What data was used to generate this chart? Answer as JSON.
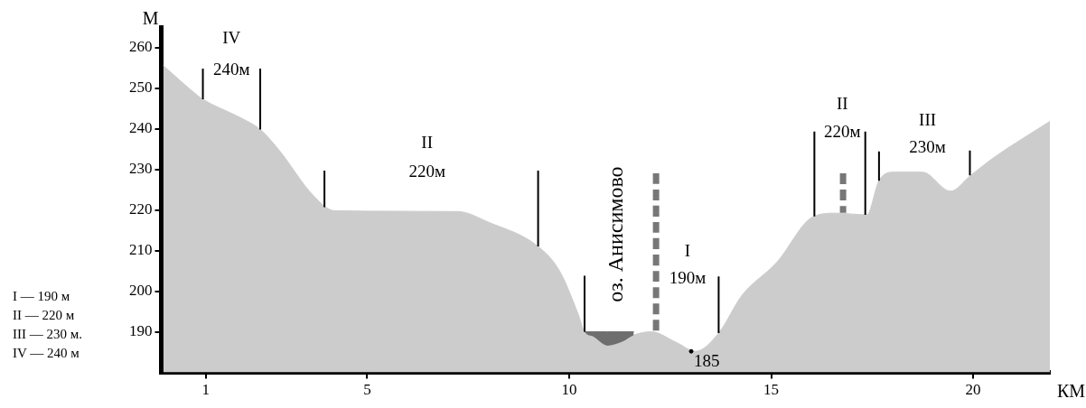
{
  "chart_data": {
    "type": "area",
    "xlabel": "КМ",
    "ylabel": "М",
    "xlim": [
      -0.1,
      21.9
    ],
    "xticks": [
      1,
      5,
      10,
      15,
      20
    ],
    "ylim": [
      180,
      265
    ],
    "yticks": [
      190,
      200,
      210,
      220,
      230,
      240,
      250,
      260
    ],
    "grid": false,
    "legend": false,
    "series": [
      {
        "color": "#cccccc",
        "x": [
          -0.05,
          0.82,
          0.93,
          1.9,
          2.35,
          2.81,
          3.66,
          4.19,
          7.24,
          8.02,
          9.23,
          9.76,
          10.22,
          10.38,
          10.6,
          10.95,
          11.3,
          11.6,
          12.03,
          12.65,
          13.13,
          13.7,
          14.28,
          15.13,
          16.05,
          16.6,
          17.37,
          17.67,
          18.04,
          18.75,
          19.44,
          19.94,
          20.5,
          21.9
        ],
        "values": [
          255.5,
          248,
          247.2,
          242.5,
          239.8,
          234.8,
          223.6,
          219.8,
          219.6,
          216.9,
          211,
          205,
          194.4,
          190,
          188.8,
          186.6,
          187.5,
          189.2,
          190,
          187.4,
          185.2,
          189.7,
          199,
          207,
          218.4,
          219.2,
          218.8,
          227.2,
          229.3,
          229.3,
          224.6,
          228.5,
          232.8,
          241.8
        ]
      },
      {
        "type": "area",
        "color": "#6e6e6e",
        "x": [
          10.38,
          10.6,
          10.95,
          11.3,
          11.6
        ],
        "values": [
          190,
          190,
          190,
          190,
          190
        ]
      },
      {
        "type": "line",
        "color": "#000000",
        "x": [
          0.93,
          0.93
        ],
        "values": [
          254.8,
          247.2
        ]
      },
      {
        "type": "line",
        "color": "#000000",
        "x": [
          2.35,
          2.35
        ],
        "values": [
          254.8,
          239.8
        ]
      },
      {
        "type": "line",
        "color": "#000000",
        "x": [
          3.94,
          3.94
        ],
        "values": [
          229.7,
          220.7
        ]
      },
      {
        "type": "line",
        "color": "#000000",
        "x": [
          9.23,
          9.23
        ],
        "values": [
          229.7,
          211
        ]
      },
      {
        "type": "line",
        "color": "#000000",
        "x": [
          10.38,
          10.38
        ],
        "values": [
          203.8,
          190
        ]
      },
      {
        "type": "line",
        "color": "#777777",
        "line_style": "dashed",
        "x": [
          12.15,
          12.15
        ],
        "values": [
          229,
          189.7
        ]
      },
      {
        "type": "line",
        "color": "#000000",
        "x": [
          13.7,
          13.7
        ],
        "values": [
          203.6,
          189.7
        ]
      },
      {
        "type": "line",
        "color": "#000000",
        "x": [
          16.07,
          16.07
        ],
        "values": [
          239.3,
          218.4
        ]
      },
      {
        "type": "line",
        "color": "#777777",
        "line_style": "dashed",
        "x": [
          16.78,
          16.78
        ],
        "values": [
          229,
          219.3
        ]
      },
      {
        "type": "line",
        "color": "#000000",
        "x": [
          17.33,
          17.33
        ],
        "values": [
          239.3,
          218.8
        ]
      },
      {
        "type": "line",
        "color": "#000000",
        "x": [
          17.67,
          17.67
        ],
        "values": [
          234.4,
          227.2
        ]
      },
      {
        "type": "line",
        "color": "#000000",
        "x": [
          19.92,
          19.92
        ],
        "values": [
          234.6,
          228.5
        ]
      },
      {
        "type": "scatter",
        "color": "#000000",
        "x": [
          13.02
        ],
        "values": [
          185.2
        ],
        "value_labels": [
          "185"
        ]
      }
    ],
    "annotations": [
      "IV",
      "240м",
      "II",
      "220м",
      "оз. Анисимово",
      "I",
      "190м",
      "II",
      "220м",
      "III",
      "230м",
      "I  — 190 м",
      "II — 220 м",
      "III — 230 м.",
      "IV — 240 м"
    ]
  }
}
